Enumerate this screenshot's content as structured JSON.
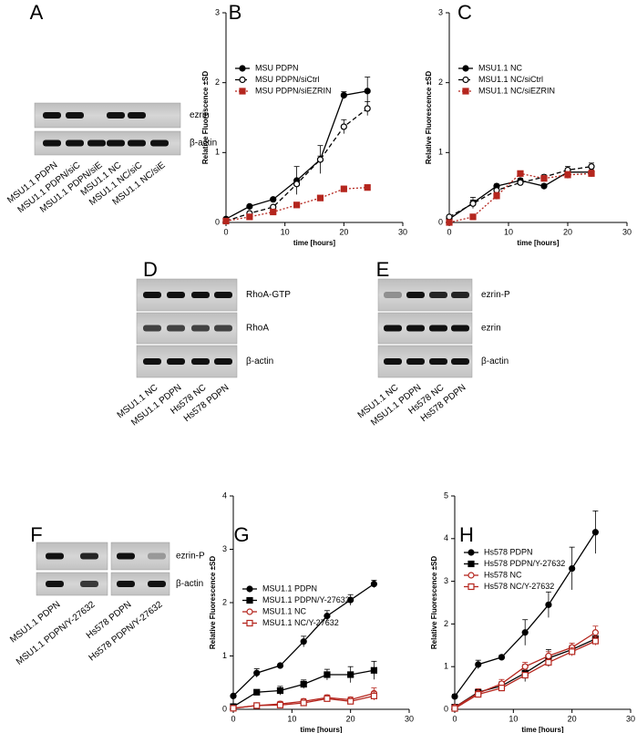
{
  "panels": [
    "A",
    "B",
    "C",
    "D",
    "E",
    "F",
    "G",
    "H"
  ],
  "blots": [
    {
      "rows": [
        "ezrin",
        "β-actin"
      ],
      "lanes": [
        "MSU1.1 PDPN",
        "MSU1.1 PDPN/siC",
        "MSU1.1 PDPN/siE",
        "MSU1.1 NC",
        "MSU1.1 NC/siC",
        "MSU1.1 NC/siE"
      ]
    },
    {
      "rows": [
        "RhoA-GTP",
        "RhoA",
        "β-actin"
      ],
      "lanes": [
        "MSU1.1 NC",
        "MSU1.1 PDPN",
        "Hs578 NC",
        "Hs578 PDPN"
      ]
    },
    {
      "rows": [
        "ezrin-P",
        "ezrin",
        "β-actin"
      ],
      "lanes": [
        "MSU1.1 NC",
        "MSU1.1 PDPN",
        "Hs578 NC",
        "Hs578 PDPN"
      ]
    },
    {
      "rows": [
        "ezrin-P",
        "β-actin"
      ],
      "lanes": [
        "MSU1.1 PDPN",
        "MSU1.1 PDPN/Y-27632",
        "Hs578 PDPN",
        "Hs578 PDPN/Y-27632"
      ]
    }
  ],
  "chart_data": [
    {
      "type": "line",
      "xlabel": "time [hours]",
      "ylabel": "Relative Fluorescence ±SD",
      "x": [
        0,
        4,
        8,
        12,
        16,
        20,
        24
      ],
      "xlim": [
        0,
        30
      ],
      "xticks": [
        0,
        10,
        20,
        30
      ],
      "ylim": [
        0,
        3
      ],
      "yticks": [
        0,
        1,
        2,
        3
      ],
      "legend": "upper left",
      "series": [
        {
          "name": "MSU PDPN",
          "color": "#000000",
          "line_style": "solid",
          "marker": "filled-circle",
          "values": [
            0.05,
            0.23,
            0.33,
            0.6,
            0.9,
            1.82,
            1.88
          ],
          "errors": [
            0,
            0.02,
            0.02,
            0.2,
            0.2,
            0.05,
            0.2
          ]
        },
        {
          "name": "MSU PDPN/siCtrl",
          "color": "#000000",
          "line_style": "dashed",
          "marker": "open-circle",
          "values": [
            0.02,
            0.13,
            0.22,
            0.55,
            0.9,
            1.37,
            1.63
          ],
          "errors": [
            0,
            0.02,
            0.02,
            0.05,
            0.05,
            0.1,
            0.1
          ]
        },
        {
          "name": "MSU PDPN/siEZRIN",
          "color": "#b5261e",
          "line_style": "dotted",
          "marker": "filled-square",
          "values": [
            0.02,
            0.08,
            0.15,
            0.25,
            0.35,
            0.48,
            0.5
          ],
          "errors": [
            0,
            0.02,
            0.02,
            0.03,
            0.03,
            0.04,
            0.04
          ]
        }
      ]
    },
    {
      "type": "line",
      "xlabel": "time [hours]",
      "ylabel": "Relative Fluorescence ±SD",
      "x": [
        0,
        4,
        8,
        12,
        16,
        20,
        24
      ],
      "xlim": [
        0,
        30
      ],
      "xticks": [
        0,
        10,
        20,
        30
      ],
      "ylim": [
        0,
        3
      ],
      "yticks": [
        0,
        1,
        2,
        3
      ],
      "legend": "upper left",
      "series": [
        {
          "name": "MSU1.1 NC",
          "color": "#000000",
          "line_style": "solid",
          "marker": "filled-circle",
          "values": [
            0.05,
            0.28,
            0.52,
            0.6,
            0.52,
            0.72,
            0.72
          ],
          "errors": [
            0.02,
            0.08,
            0.03,
            0.03,
            0.03,
            0.05,
            0.05
          ]
        },
        {
          "name": "MSU1.1 NC/siCtrl",
          "color": "#000000",
          "line_style": "dashed",
          "marker": "open-circle",
          "values": [
            0.08,
            0.27,
            0.46,
            0.57,
            0.65,
            0.75,
            0.8
          ],
          "errors": [
            0.02,
            0.05,
            0.03,
            0.03,
            0.03,
            0.05,
            0.05
          ]
        },
        {
          "name": "MSU1.1 NC/siEZRIN",
          "color": "#b5261e",
          "line_style": "dotted",
          "marker": "filled-square",
          "values": [
            0,
            0.08,
            0.38,
            0.7,
            0.63,
            0.68,
            0.7
          ],
          "errors": [
            0,
            0.02,
            0.05,
            0.03,
            0.03,
            0.05,
            0.05
          ]
        }
      ]
    },
    {
      "type": "line",
      "xlabel": "time [hours]",
      "ylabel": "Relative Fluorescence ±SD",
      "x": [
        0,
        4,
        8,
        12,
        16,
        20,
        24
      ],
      "xlim": [
        0,
        30
      ],
      "xticks": [
        0,
        10,
        20,
        30
      ],
      "ylim": [
        0,
        4
      ],
      "yticks": [
        0,
        1,
        2,
        3,
        4
      ],
      "legend": "upper left",
      "series": [
        {
          "name": "MSU1.1 PDPN",
          "color": "#000000",
          "line_style": "solid",
          "marker": "filled-circle",
          "values": [
            0.25,
            0.68,
            0.82,
            1.27,
            1.75,
            2.05,
            2.35
          ],
          "errors": [
            0.02,
            0.08,
            0.03,
            0.1,
            0.1,
            0.1,
            0.07
          ]
        },
        {
          "name": "MSU1.1 PDPN/Y-27632",
          "color": "#000000",
          "line_style": "solid",
          "marker": "filled-square",
          "values": [
            0.05,
            0.32,
            0.35,
            0.47,
            0.65,
            0.65,
            0.73
          ],
          "errors": [
            0.02,
            0.03,
            0.08,
            0.08,
            0.1,
            0.15,
            0.17
          ]
        },
        {
          "name": "MSU1.1 NC",
          "color": "#b5261e",
          "line_style": "solid",
          "marker": "open-circle",
          "values": [
            0.02,
            0.07,
            0.1,
            0.15,
            0.22,
            0.18,
            0.3
          ],
          "errors": [
            0.01,
            0.03,
            0.05,
            0.05,
            0.05,
            0.05,
            0.1
          ]
        },
        {
          "name": "MSU1.1 NC/Y-27632",
          "color": "#b5261e",
          "line_style": "solid",
          "marker": "open-square",
          "values": [
            0.02,
            0.07,
            0.08,
            0.12,
            0.2,
            0.15,
            0.25
          ],
          "errors": [
            0.01,
            0.02,
            0.03,
            0.03,
            0.05,
            0.05,
            0.08
          ]
        }
      ]
    },
    {
      "type": "line",
      "xlabel": "time [hours]",
      "ylabel": "Relative Fluorescence ±SD",
      "x": [
        0,
        4,
        8,
        12,
        16,
        20,
        24
      ],
      "xlim": [
        0,
        30
      ],
      "xticks": [
        0,
        10,
        20,
        30
      ],
      "ylim": [
        0,
        5
      ],
      "yticks": [
        0,
        1,
        2,
        3,
        4,
        5
      ],
      "legend": "upper left",
      "series": [
        {
          "name": "Hs578 PDPN",
          "color": "#000000",
          "line_style": "solid",
          "marker": "filled-circle",
          "values": [
            0.3,
            1.05,
            1.22,
            1.8,
            2.45,
            3.3,
            4.15
          ],
          "errors": [
            0.05,
            0.1,
            0.05,
            0.3,
            0.3,
            0.5,
            0.5
          ]
        },
        {
          "name": "Hs578 PDPN/Y-27632",
          "color": "#000000",
          "line_style": "solid",
          "marker": "filled-square",
          "values": [
            0.05,
            0.4,
            0.55,
            0.85,
            1.2,
            1.4,
            1.65
          ],
          "errors": [
            0.02,
            0.05,
            0.1,
            0.2,
            0.2,
            0.1,
            0.1
          ]
        },
        {
          "name": "Hs578 NC",
          "color": "#b5261e",
          "line_style": "solid",
          "marker": "open-circle",
          "values": [
            0.05,
            0.38,
            0.6,
            1.0,
            1.25,
            1.45,
            1.8
          ],
          "errors": [
            0.02,
            0.1,
            0.1,
            0.1,
            0.1,
            0.1,
            0.15
          ]
        },
        {
          "name": "Hs578 NC/Y-27632",
          "color": "#b5261e",
          "line_style": "solid",
          "marker": "open-square",
          "values": [
            0.02,
            0.35,
            0.5,
            0.8,
            1.1,
            1.35,
            1.6
          ],
          "errors": [
            0.02,
            0.05,
            0.05,
            0.05,
            0.05,
            0.1,
            0.1
          ]
        }
      ]
    }
  ]
}
